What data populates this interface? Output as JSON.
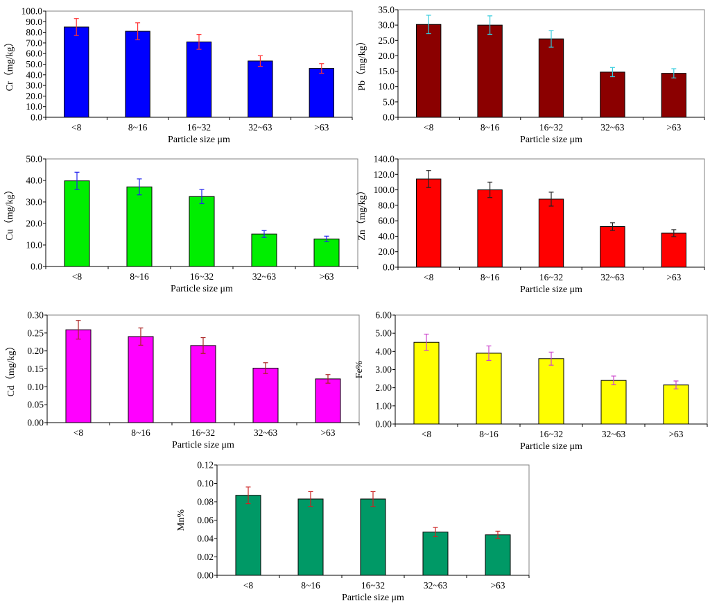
{
  "chart_data": [
    {
      "type": "bar",
      "categories": [
        "<8",
        "8~16",
        "16~32",
        "32~63",
        ">63"
      ],
      "values": [
        85.0,
        81.0,
        71.0,
        53.0,
        46.0
      ],
      "errors": [
        8.0,
        8.0,
        7.0,
        5.0,
        4.5
      ],
      "ylim": [
        0,
        100
      ],
      "yticks": [
        "0.0",
        "10.0",
        "20.0",
        "30.0",
        "40.0",
        "50.0",
        "60.0",
        "70.0",
        "80.0",
        "90.0",
        "100.0"
      ],
      "xlabel": "Particle size μm",
      "ylabel": "Cr（mg/kg）",
      "bar_color": "#0000ff",
      "error_color": "#ff3333"
    },
    {
      "type": "bar",
      "categories": [
        "<8",
        "8~16",
        "16~32",
        "32~63",
        ">63"
      ],
      "values": [
        30.2,
        30.0,
        25.5,
        14.7,
        14.3
      ],
      "errors": [
        3.0,
        3.0,
        2.7,
        1.5,
        1.5
      ],
      "ylim": [
        0,
        35
      ],
      "yticks": [
        "0.0",
        "5.0",
        "10.0",
        "15.0",
        "20.0",
        "25.0",
        "30.0",
        "35.0"
      ],
      "xlabel": "Particle size μm",
      "ylabel": "Pb（mg/kg）",
      "bar_color": "#8b0000",
      "error_color": "#33ccdd"
    },
    {
      "type": "bar",
      "categories": [
        "<8",
        "8~16",
        "16~32",
        "32~63",
        ">63"
      ],
      "values": [
        39.8,
        37.0,
        32.5,
        15.1,
        12.8
      ],
      "errors": [
        4.0,
        3.7,
        3.3,
        1.6,
        1.3
      ],
      "ylim": [
        0,
        50
      ],
      "yticks": [
        "0.0",
        "10.0",
        "20.0",
        "30.0",
        "40.0",
        "50.0"
      ],
      "xlabel": "Particle size μm",
      "ylabel": "Cu（mg/kg）",
      "bar_color": "#00ee00",
      "error_color": "#2222ee"
    },
    {
      "type": "bar",
      "categories": [
        "<8",
        "8~16",
        "16~32",
        "32~63",
        ">63"
      ],
      "values": [
        114.0,
        100.0,
        88.0,
        52.5,
        44.0
      ],
      "errors": [
        11.0,
        10.0,
        9.0,
        5.0,
        4.5
      ],
      "ylim": [
        0,
        140
      ],
      "yticks": [
        "0.0",
        "20.0",
        "40.0",
        "60.0",
        "80.0",
        "100.0",
        "120.0",
        "140.0"
      ],
      "xlabel": "Particle size μm",
      "ylabel": "Zn（mg/kg）",
      "bar_color": "#ff0000",
      "error_color": "#222222"
    },
    {
      "type": "bar",
      "categories": [
        "<8",
        "8~16",
        "16~32",
        "32~63",
        ">63"
      ],
      "values": [
        0.259,
        0.24,
        0.215,
        0.152,
        0.122
      ],
      "errors": [
        0.026,
        0.024,
        0.022,
        0.015,
        0.012
      ],
      "ylim": [
        0,
        0.3
      ],
      "yticks": [
        "0.00",
        "0.05",
        "0.10",
        "0.15",
        "0.20",
        "0.25",
        "0.30"
      ],
      "xlabel": "Particle size μm",
      "ylabel": "Cd（mg/kg）",
      "bar_color": "#ff00ff",
      "error_color": "#aa2222"
    },
    {
      "type": "bar",
      "categories": [
        "<8",
        "8~16",
        "16~32",
        "32~63",
        ">63"
      ],
      "values": [
        4.5,
        3.9,
        3.6,
        2.4,
        2.15
      ],
      "errors": [
        0.45,
        0.4,
        0.36,
        0.24,
        0.22
      ],
      "ylim": [
        0,
        6
      ],
      "yticks": [
        "0.00",
        "1.00",
        "2.00",
        "3.00",
        "4.00",
        "5.00",
        "6.00"
      ],
      "xlabel": "Particle size μm",
      "ylabel": "Fe%",
      "bar_color": "#ffff00",
      "error_color": "#cc44cc"
    },
    {
      "type": "bar",
      "categories": [
        "<8",
        "8~16",
        "16~32",
        "32~63",
        ">63"
      ],
      "values": [
        0.087,
        0.083,
        0.083,
        0.047,
        0.044
      ],
      "errors": [
        0.009,
        0.008,
        0.008,
        0.005,
        0.004
      ],
      "ylim": [
        0,
        0.12
      ],
      "yticks": [
        "0.00",
        "0.02",
        "0.04",
        "0.06",
        "0.08",
        "0.10",
        "0.12"
      ],
      "xlabel": "Particle size μm",
      "ylabel": "Mn%",
      "bar_color": "#009966",
      "error_color": "#cc2222"
    }
  ]
}
